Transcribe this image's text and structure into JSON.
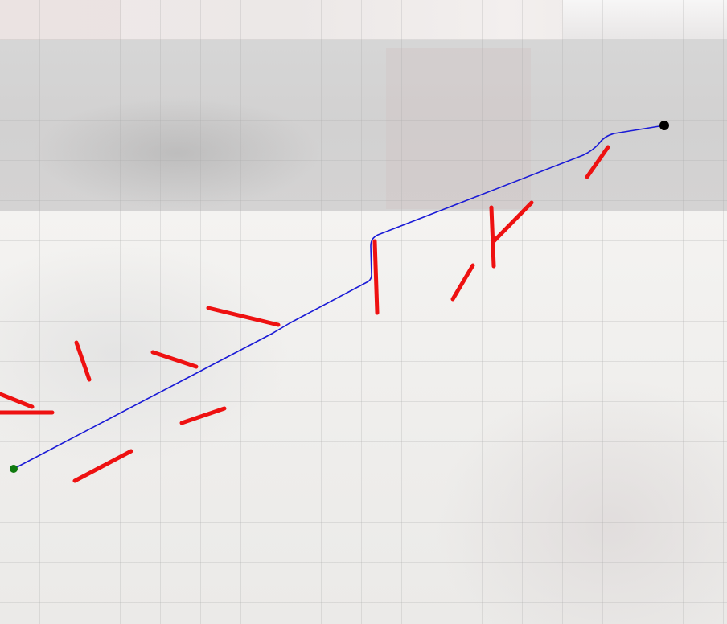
{
  "canvas": {
    "background": "#f1f0ee",
    "grid_visible": true,
    "grid_color": "#aaaaaa",
    "gray_band_color": "#d4d4d4"
  },
  "obstacles": {
    "color": "#ee1111"
  },
  "path": {
    "color": "#1a1ad6",
    "start_marker_color": "#0f7a0f",
    "end_marker_color": "#000000"
  }
}
